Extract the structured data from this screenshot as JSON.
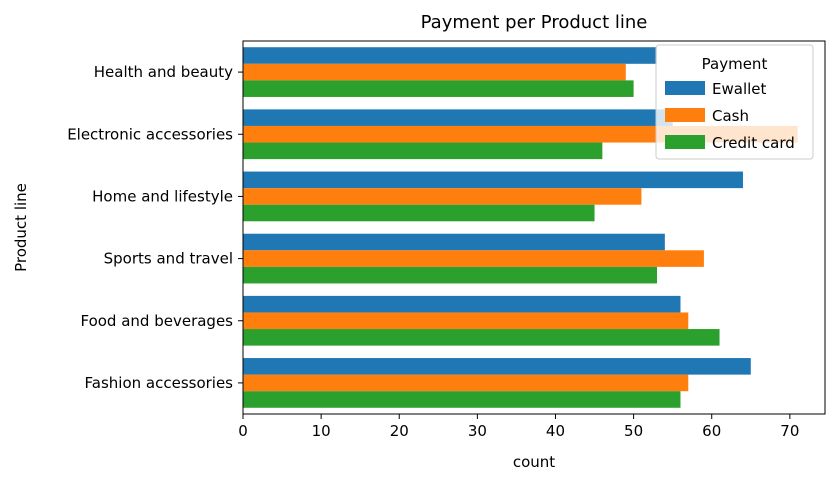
{
  "chart_data": {
    "type": "bar",
    "orientation": "horizontal",
    "title": "Payment per Product line",
    "xlabel": "count",
    "ylabel": "Product line",
    "xlim": [
      0,
      74.5
    ],
    "xticks": [
      0,
      10,
      20,
      30,
      40,
      50,
      60,
      70
    ],
    "grid": false,
    "categories": [
      "Health and beauty",
      "Electronic accessories",
      "Home and lifestyle",
      "Sports and travel",
      "Food and beverages",
      "Fashion accessories"
    ],
    "legend": {
      "title": "Payment",
      "position": "top-right"
    },
    "series": [
      {
        "name": "Ewallet",
        "color": "#1f77b4",
        "values": [
          53,
          55,
          64,
          54,
          56,
          65
        ]
      },
      {
        "name": "Cash",
        "color": "#ff7f0e",
        "values": [
          49,
          71,
          51,
          59,
          57,
          57
        ]
      },
      {
        "name": "Credit card",
        "color": "#2ca02c",
        "values": [
          50,
          46,
          45,
          53,
          61,
          56
        ]
      }
    ]
  }
}
